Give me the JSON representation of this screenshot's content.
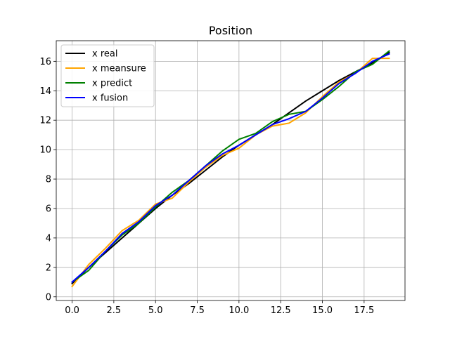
{
  "chart_data": {
    "type": "line",
    "title": "Position",
    "xlabel": "",
    "ylabel": "",
    "xlim": [
      -0.95,
      19.95
    ],
    "ylim": [
      -0.25,
      17.4
    ],
    "xticks": [
      0.0,
      2.5,
      5.0,
      7.5,
      10.0,
      12.5,
      15.0,
      17.5
    ],
    "xtick_labels": [
      "0.0",
      "2.5",
      "5.0",
      "7.5",
      "10.0",
      "12.5",
      "15.0",
      "17.5"
    ],
    "yticks": [
      0,
      2,
      4,
      6,
      8,
      10,
      12,
      14,
      16
    ],
    "ytick_labels": [
      "0",
      "2",
      "4",
      "6",
      "8",
      "10",
      "12",
      "14",
      "16"
    ],
    "grid": true,
    "legend_position": "top-left",
    "series": [
      {
        "name": "x real",
        "color": "#000000",
        "x": [
          0,
          1,
          2,
          3,
          4,
          5,
          6,
          7,
          8,
          9,
          10,
          11,
          12,
          13,
          14,
          15,
          16,
          17,
          18,
          19
        ],
        "y": [
          0.9,
          2.0,
          3.0,
          4.0,
          5.0,
          6.0,
          6.9,
          7.7,
          8.6,
          9.5,
          10.3,
          11.0,
          11.7,
          12.5,
          13.3,
          14.0,
          14.7,
          15.3,
          15.9,
          16.6
        ]
      },
      {
        "name": "x meansure",
        "color": "#ffa500",
        "x": [
          0,
          1,
          2,
          3,
          4,
          5,
          6,
          7,
          8,
          9,
          10,
          11,
          12,
          13,
          14,
          15,
          16,
          17,
          18,
          19
        ],
        "y": [
          0.7,
          2.2,
          3.3,
          4.5,
          5.2,
          6.3,
          6.7,
          7.8,
          8.8,
          9.6,
          10.1,
          11.0,
          11.6,
          11.8,
          12.5,
          13.6,
          14.6,
          15.2,
          16.2,
          16.2
        ]
      },
      {
        "name": "x predict",
        "color": "#008000",
        "x": [
          0,
          1,
          2,
          3,
          4,
          5,
          6,
          7,
          8,
          9,
          10,
          11,
          12,
          13,
          14,
          15,
          16,
          17,
          18,
          19
        ],
        "y": [
          1.0,
          1.8,
          3.1,
          4.2,
          5.0,
          6.1,
          7.1,
          7.9,
          8.9,
          9.9,
          10.7,
          11.1,
          11.9,
          12.4,
          12.6,
          13.4,
          14.3,
          15.3,
          15.8,
          16.7
        ]
      },
      {
        "name": "x fusion",
        "color": "#0000ff",
        "x": [
          0,
          1,
          2,
          3,
          4,
          5,
          6,
          7,
          8,
          9,
          10,
          11,
          12,
          13,
          14,
          15,
          16,
          17,
          18,
          19
        ],
        "y": [
          1.0,
          2.0,
          3.1,
          4.3,
          5.1,
          6.2,
          6.9,
          7.9,
          8.9,
          9.7,
          10.3,
          11.0,
          11.7,
          12.1,
          12.6,
          13.5,
          14.5,
          15.2,
          16.0,
          16.5
        ]
      }
    ]
  }
}
